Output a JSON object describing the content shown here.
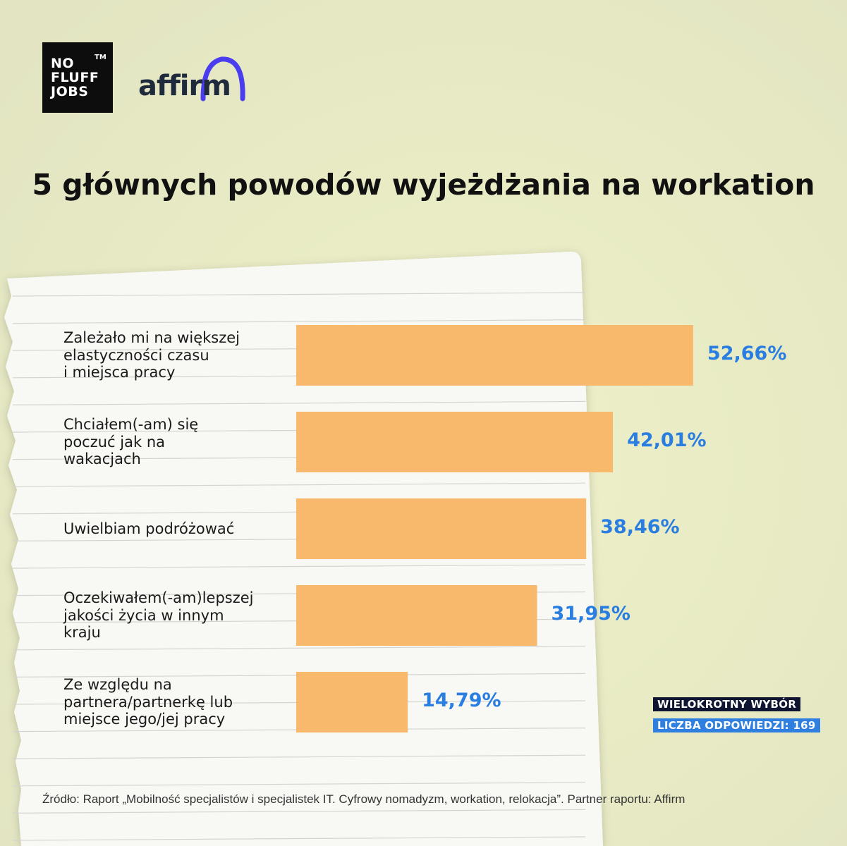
{
  "header": {
    "nfj_logo": [
      "NO",
      "FLUFF",
      "JOBS"
    ],
    "nfj_trademark": "TM",
    "affirm_logo": "affirm"
  },
  "chart_data": {
    "type": "bar",
    "orientation": "horizontal",
    "title": "5 głównych powodów wyjeżdżania na workation",
    "categories": [
      "Zależało mi na większej\nelastyczności czasu\ni miejsca pracy",
      "Chciałem(-am) się\npoczuć jak na\nwakacjach",
      "Uwielbiam podróżować",
      "Oczekiwałem(-am)lepszej\njakości życia w innym\nkraju",
      "Ze względu na\npartnera/partnerkę lub\nmiejsce jego/jej pracy"
    ],
    "values": [
      52.66,
      42.01,
      38.46,
      31.95,
      14.79
    ],
    "value_labels": [
      "52,66%",
      "42,01%",
      "38,46%",
      "31,95%",
      "14,79%"
    ],
    "unit": "%",
    "bar_color": "#f8b96c",
    "value_color": "#2a7de1",
    "grid": false,
    "legend": "none"
  },
  "badges": {
    "multiple_choice": "WIELOKROTNY WYBÓR",
    "responses": "LICZBA ODPOWIEDZI: 169"
  },
  "source": "Źródło: Raport „Mobilność specjalistów i specjalistek IT. Cyfrowy nomadyzm, workation, relokacja”. Partner raportu: Affirm"
}
